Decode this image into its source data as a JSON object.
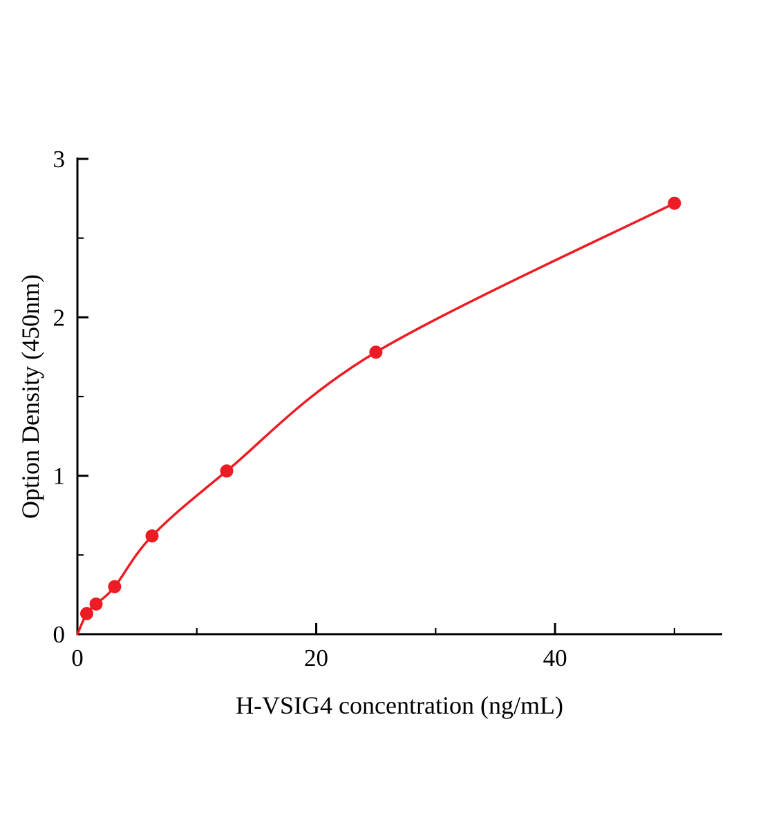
{
  "chart_data": {
    "type": "scatter",
    "title": "",
    "xlabel": "H-VSIG4 concentration (ng/mL)",
    "ylabel": "Option Density (450nm)",
    "x": [
      0.78,
      1.56,
      3.12,
      6.25,
      12.5,
      25,
      50
    ],
    "y": [
      0.13,
      0.19,
      0.3,
      0.62,
      1.03,
      1.78,
      2.72
    ],
    "curve_start": [
      0,
      0
    ],
    "xlim": [
      0,
      54
    ],
    "ylim": [
      0,
      3
    ],
    "x_ticks": [
      0,
      20,
      40
    ],
    "y_ticks": [
      0,
      1,
      2,
      3
    ],
    "x_minor_step": 10,
    "y_minor_step": 0.5,
    "grid": false,
    "legend": null,
    "line_color": "#ed1c24",
    "marker_color": "#ed1c24",
    "axis_color": "#000000"
  }
}
